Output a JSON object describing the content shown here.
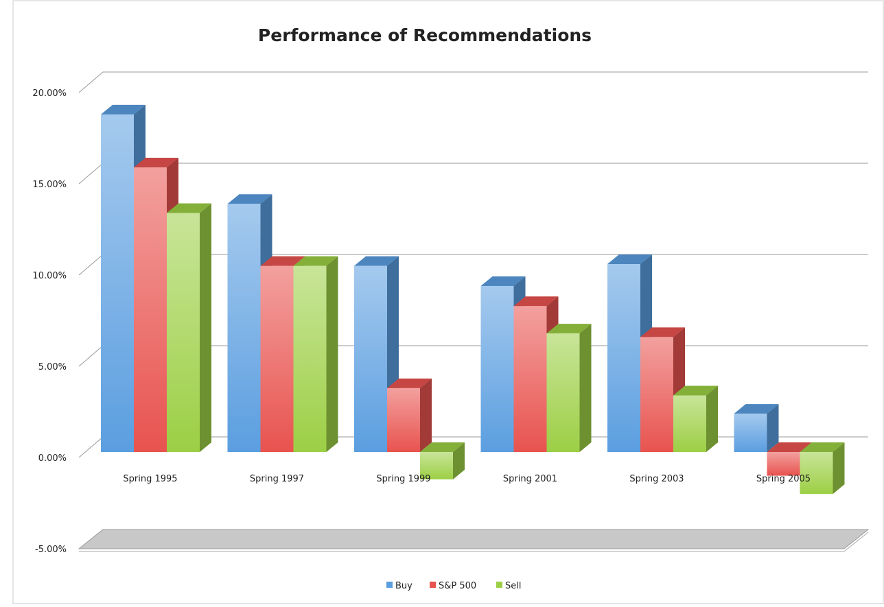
{
  "chart_data": {
    "type": "bar3d",
    "title": "Performance of  Recommendations",
    "categories": [
      "Spring 1995",
      "Spring 1997",
      "Spring 1999",
      "Spring 2001",
      "Spring 2003",
      "Spring 2005"
    ],
    "series": [
      {
        "name": "Buy",
        "color": "#5b9ee0",
        "values": [
          18.5,
          13.6,
          10.2,
          9.1,
          10.3,
          2.1
        ]
      },
      {
        "name": "S&P 500",
        "color": "#e8534f",
        "values": [
          15.6,
          10.2,
          3.5,
          8.0,
          6.3,
          -1.3
        ]
      },
      {
        "name": "Sell",
        "color": "#9ccf45",
        "values": [
          13.1,
          10.2,
          -1.5,
          6.5,
          3.1,
          -2.3
        ]
      }
    ],
    "ylim": [
      -5,
      20
    ],
    "yticks": [
      {
        "value": -5,
        "label": "-5.00%"
      },
      {
        "value": 0,
        "label": "0.00%"
      },
      {
        "value": 5,
        "label": "5.00%"
      },
      {
        "value": 10,
        "label": "10.00%"
      },
      {
        "value": 15,
        "label": "15.00%"
      },
      {
        "value": 20,
        "label": "20.00%"
      }
    ],
    "grid": true,
    "legend": "bottom"
  }
}
